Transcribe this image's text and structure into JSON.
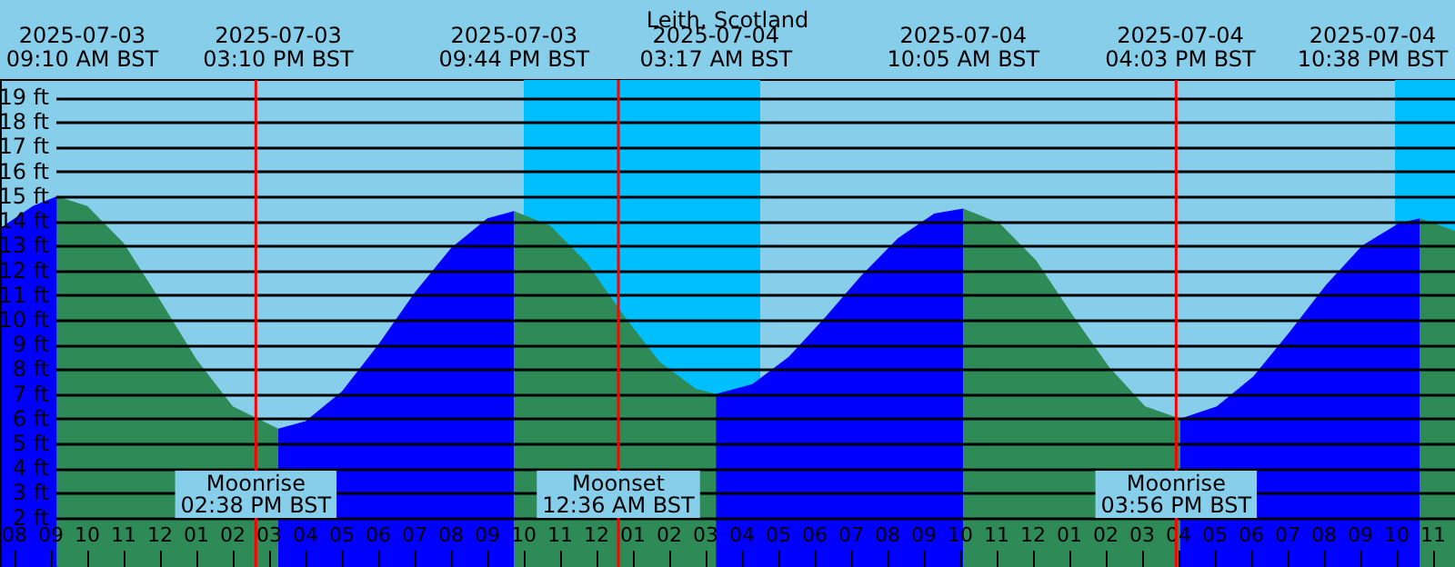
{
  "chart_data": {
    "type": "area",
    "title": "Leith, Scotland",
    "xlim": [
      "2025-07-03T07:36",
      "2025-07-04T23:36"
    ],
    "ylim": [
      0,
      19.7
    ],
    "yticks": [
      {
        "value": 2,
        "label": "2 ft"
      },
      {
        "value": 3,
        "label": "3 ft"
      },
      {
        "value": 4,
        "label": "4 ft"
      },
      {
        "value": 5,
        "label": "5 ft"
      },
      {
        "value": 6,
        "label": "6 ft"
      },
      {
        "value": 7,
        "label": "7 ft"
      },
      {
        "value": 8,
        "label": "8 ft"
      },
      {
        "value": 9,
        "label": "9 ft"
      },
      {
        "value": 10,
        "label": "10 ft"
      },
      {
        "value": 11,
        "label": "11 ft"
      },
      {
        "value": 12,
        "label": "12 ft"
      },
      {
        "value": 13,
        "label": "13 ft"
      },
      {
        "value": 14,
        "label": "14 ft"
      },
      {
        "value": 15,
        "label": "15 ft"
      },
      {
        "value": 16,
        "label": "16 ft"
      },
      {
        "value": 17,
        "label": "17 ft"
      },
      {
        "value": 18,
        "label": "18 ft"
      },
      {
        "value": 19,
        "label": "19 ft"
      }
    ],
    "xticks": [
      {
        "value": "2025-07-03T08:00",
        "label": "08"
      },
      {
        "value": "2025-07-03T09:00",
        "label": "09"
      },
      {
        "value": "2025-07-03T10:00",
        "label": "10"
      },
      {
        "value": "2025-07-03T11:00",
        "label": "11"
      },
      {
        "value": "2025-07-03T12:00",
        "label": "12"
      },
      {
        "value": "2025-07-03T13:00",
        "label": "01"
      },
      {
        "value": "2025-07-03T14:00",
        "label": "02"
      },
      {
        "value": "2025-07-03T15:00",
        "label": "03"
      },
      {
        "value": "2025-07-03T16:00",
        "label": "04"
      },
      {
        "value": "2025-07-03T17:00",
        "label": "05"
      },
      {
        "value": "2025-07-03T18:00",
        "label": "06"
      },
      {
        "value": "2025-07-03T19:00",
        "label": "07"
      },
      {
        "value": "2025-07-03T20:00",
        "label": "08"
      },
      {
        "value": "2025-07-03T21:00",
        "label": "09"
      },
      {
        "value": "2025-07-03T22:00",
        "label": "10"
      },
      {
        "value": "2025-07-03T23:00",
        "label": "11"
      },
      {
        "value": "2025-07-04T00:00",
        "label": "12"
      },
      {
        "value": "2025-07-04T01:00",
        "label": "01"
      },
      {
        "value": "2025-07-04T02:00",
        "label": "02"
      },
      {
        "value": "2025-07-04T03:00",
        "label": "03"
      },
      {
        "value": "2025-07-04T04:00",
        "label": "04"
      },
      {
        "value": "2025-07-04T05:00",
        "label": "05"
      },
      {
        "value": "2025-07-04T06:00",
        "label": "06"
      },
      {
        "value": "2025-07-04T07:00",
        "label": "07"
      },
      {
        "value": "2025-07-04T08:00",
        "label": "08"
      },
      {
        "value": "2025-07-04T09:00",
        "label": "09"
      },
      {
        "value": "2025-07-04T10:00",
        "label": "10"
      },
      {
        "value": "2025-07-04T11:00",
        "label": "11"
      },
      {
        "value": "2025-07-04T12:00",
        "label": "12"
      },
      {
        "value": "2025-07-04T13:00",
        "label": "01"
      },
      {
        "value": "2025-07-04T14:00",
        "label": "02"
      },
      {
        "value": "2025-07-04T15:00",
        "label": "03"
      },
      {
        "value": "2025-07-04T16:00",
        "label": "04"
      },
      {
        "value": "2025-07-04T17:00",
        "label": "05"
      },
      {
        "value": "2025-07-04T18:00",
        "label": "06"
      },
      {
        "value": "2025-07-04T19:00",
        "label": "07"
      },
      {
        "value": "2025-07-04T20:00",
        "label": "08"
      },
      {
        "value": "2025-07-04T21:00",
        "label": "09"
      },
      {
        "value": "2025-07-04T22:00",
        "label": "10"
      },
      {
        "value": "2025-07-04T23:00",
        "label": "11"
      }
    ],
    "grid": "y",
    "series": [
      {
        "color": "#0000ff",
        "x": [
          "2025-07-03T07:36",
          "2025-07-03T08:30",
          "2025-07-03T09:10"
        ],
        "values": [
          13.7,
          14.6,
          15.0
        ]
      },
      {
        "color": "#2e8b57",
        "x": [
          "2025-07-03T09:10",
          "2025-07-03T10:00",
          "2025-07-03T11:00",
          "2025-07-03T12:00",
          "2025-07-03T13:00",
          "2025-07-03T14:00",
          "2025-07-03T15:15"
        ],
        "values": [
          15.0,
          14.6,
          13.1,
          10.8,
          8.4,
          6.5,
          5.6
        ]
      },
      {
        "color": "#0000ff",
        "x": [
          "2025-07-03T15:15",
          "2025-07-03T16:00",
          "2025-07-03T17:00",
          "2025-07-03T18:00",
          "2025-07-03T19:00",
          "2025-07-03T20:00",
          "2025-07-03T21:00",
          "2025-07-03T21:44"
        ],
        "values": [
          5.6,
          5.9,
          7.1,
          9.0,
          11.1,
          12.9,
          14.1,
          14.4
        ]
      },
      {
        "color": "#2e8b57",
        "x": [
          "2025-07-03T21:44",
          "2025-07-03T22:44",
          "2025-07-03T23:44",
          "2025-07-04T00:44",
          "2025-07-04T01:44",
          "2025-07-04T02:44",
          "2025-07-04T03:17"
        ],
        "values": [
          14.4,
          13.8,
          12.3,
          10.2,
          8.3,
          7.2,
          7.0
        ]
      },
      {
        "color": "#0000ff",
        "x": [
          "2025-07-04T03:17",
          "2025-07-04T04:17",
          "2025-07-04T05:17",
          "2025-07-04T06:17",
          "2025-07-04T07:17",
          "2025-07-04T08:17",
          "2025-07-04T09:17",
          "2025-07-04T10:05"
        ],
        "values": [
          7.0,
          7.4,
          8.5,
          10.1,
          11.8,
          13.3,
          14.3,
          14.5
        ]
      },
      {
        "color": "#2e8b57",
        "x": [
          "2025-07-04T10:05",
          "2025-07-04T11:05",
          "2025-07-04T12:05",
          "2025-07-04T13:05",
          "2025-07-04T14:05",
          "2025-07-04T15:05",
          "2025-07-04T16:03"
        ],
        "values": [
          14.5,
          13.9,
          12.4,
          10.2,
          8.1,
          6.5,
          6.0
        ]
      },
      {
        "color": "#0000ff",
        "x": [
          "2025-07-04T16:03",
          "2025-07-04T17:03",
          "2025-07-04T18:03",
          "2025-07-04T19:03",
          "2025-07-04T20:03",
          "2025-07-04T21:03",
          "2025-07-04T22:03",
          "2025-07-04T22:38"
        ],
        "values": [
          6.0,
          6.5,
          7.7,
          9.5,
          11.4,
          13.0,
          13.9,
          14.1
        ]
      },
      {
        "color": "#2e8b57",
        "x": [
          "2025-07-04T22:38",
          "2025-07-04T23:36"
        ],
        "values": [
          14.1,
          13.6
        ]
      }
    ],
    "bands": [
      {
        "axis": "x",
        "from": "2025-07-03T22:00",
        "to": "2025-07-04T04:30",
        "color": "#00bfff"
      },
      {
        "axis": "x",
        "from": "2025-07-04T21:57",
        "to": "2025-07-04T23:36",
        "color": "#00bfff"
      }
    ],
    "annotations": [
      "2025-07-03\n09:10 AM BST",
      "2025-07-03\n03:10 PM BST",
      "2025-07-03\n09:44 PM BST",
      "2025-07-04\n03:17 AM BST",
      "2025-07-04\n10:05 AM BST",
      "2025-07-04\n04:03 PM BST",
      "2025-07-04\n10:38 PM BST"
    ],
    "ref_lines": [
      {
        "axis": "x",
        "value": "2025-07-03T14:38",
        "label": "Moonrise\n02:38 PM BST",
        "color": "#ff0000"
      },
      {
        "axis": "x",
        "value": "2025-07-04T00:36",
        "label": "Moonset\n12:36 AM BST",
        "color": "#ff0000"
      },
      {
        "axis": "x",
        "value": "2025-07-04T15:56",
        "label": "Moonrise\n03:56 PM BST",
        "color": "#ff0000"
      }
    ]
  }
}
